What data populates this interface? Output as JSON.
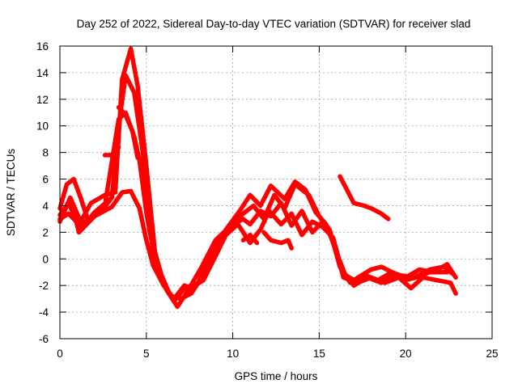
{
  "chart_data": {
    "type": "line",
    "title": "Day 252 of 2022, Sidereal Day-to-day VTEC variation (SDTVAR) for receiver slad",
    "xlabel": "GPS time / hours",
    "ylabel": "SDTVAR / TECUs",
    "xlim": [
      0,
      25
    ],
    "ylim": [
      -6,
      16
    ],
    "xticks": [
      0,
      5,
      10,
      15,
      20,
      25
    ],
    "yticks": [
      -6,
      -4,
      -2,
      0,
      2,
      4,
      6,
      8,
      10,
      12,
      14,
      16
    ],
    "grid": true,
    "marker": "plus",
    "color": "#ff0000",
    "series": [
      {
        "name": "series-1",
        "points": [
          [
            0,
            2.9
          ],
          [
            0.6,
            4.6
          ],
          [
            1.2,
            2.8
          ],
          [
            1.8,
            4.2
          ],
          [
            2.6,
            4.8
          ],
          [
            3.2,
            5.0
          ],
          [
            3.6,
            13.5
          ],
          [
            4.1,
            15.8
          ],
          [
            4.5,
            13.0
          ],
          [
            5.0,
            7.0
          ],
          [
            5.5,
            0.5
          ],
          [
            6.0,
            -1.8
          ],
          [
            6.6,
            -3.2
          ],
          [
            7.2,
            -2.2
          ],
          [
            8.0,
            -1.8
          ],
          [
            8.8,
            0.5
          ],
          [
            9.6,
            2.2
          ],
          [
            10.4,
            3.6
          ],
          [
            11.0,
            4.8
          ],
          [
            11.6,
            4.0
          ],
          [
            12.2,
            5.5
          ],
          [
            13.0,
            4.5
          ],
          [
            13.6,
            5.8
          ],
          [
            14.2,
            5.2
          ],
          [
            14.8,
            3.5
          ],
          [
            15.4,
            2.6
          ],
          [
            16.0,
            0.5
          ],
          [
            16.5,
            -1.2
          ],
          [
            17.0,
            -1.6
          ],
          [
            18.0,
            -0.8
          ],
          [
            18.6,
            -0.6
          ],
          [
            19.5,
            -1.2
          ],
          [
            20.5,
            -1.4
          ],
          [
            21.4,
            -0.8
          ],
          [
            22.2,
            -0.6
          ],
          [
            22.8,
            -1.2
          ]
        ]
      },
      {
        "name": "series-2",
        "points": [
          [
            0,
            3.3
          ],
          [
            0.5,
            4.2
          ],
          [
            1.2,
            2.2
          ],
          [
            2.0,
            3.5
          ],
          [
            3.0,
            4.6
          ],
          [
            3.5,
            11.0
          ],
          [
            3.8,
            13.8
          ],
          [
            4.3,
            12.5
          ],
          [
            4.8,
            8.0
          ],
          [
            5.2,
            2.0
          ],
          [
            5.8,
            -1.0
          ],
          [
            6.4,
            -2.8
          ],
          [
            7.0,
            -3.0
          ],
          [
            7.6,
            -2.6
          ],
          [
            8.4,
            -1.0
          ],
          [
            9.2,
            1.0
          ],
          [
            10.0,
            2.8
          ],
          [
            10.6,
            3.4
          ],
          [
            11.2,
            4.0
          ],
          [
            11.8,
            3.0
          ],
          [
            12.4,
            4.8
          ],
          [
            13.0,
            3.8
          ],
          [
            13.6,
            5.6
          ],
          [
            14.4,
            4.8
          ],
          [
            15.0,
            3.2
          ],
          [
            15.6,
            2.2
          ],
          [
            16.2,
            -0.6
          ],
          [
            16.8,
            -1.8
          ],
          [
            17.6,
            -1.2
          ],
          [
            18.4,
            -1.6
          ],
          [
            19.2,
            -1.0
          ],
          [
            20.0,
            -1.4
          ],
          [
            20.8,
            -0.8
          ],
          [
            21.6,
            -1.0
          ],
          [
            22.4,
            -0.4
          ],
          [
            22.9,
            -1.4
          ]
        ]
      },
      {
        "name": "series-3",
        "points": [
          [
            0,
            3.0
          ],
          [
            0.5,
            3.4
          ],
          [
            1.1,
            2.6
          ],
          [
            1.8,
            3.0
          ],
          [
            2.6,
            4.0
          ],
          [
            3.4,
            10.5
          ],
          [
            3.8,
            11.0
          ],
          [
            4.3,
            9.2
          ],
          [
            4.6,
            7.4
          ],
          [
            5.0,
            3.5
          ],
          [
            5.6,
            -0.8
          ],
          [
            6.2,
            -2.4
          ],
          [
            6.8,
            -3.6
          ],
          [
            7.4,
            -2.4
          ],
          [
            8.2,
            -0.6
          ],
          [
            9.0,
            1.4
          ],
          [
            9.8,
            2.4
          ],
          [
            10.6,
            3.0
          ],
          [
            11.0,
            2.6
          ],
          [
            11.6,
            3.6
          ],
          [
            12.2,
            3.2
          ],
          [
            12.8,
            4.2
          ],
          [
            13.4,
            2.5
          ],
          [
            14.0,
            3.6
          ],
          [
            14.6,
            2.0
          ],
          [
            15.2,
            2.8
          ],
          [
            15.8,
            1.5
          ],
          [
            16.4,
            -1.4
          ],
          [
            17.2,
            -1.8
          ],
          [
            18.0,
            -1.4
          ],
          [
            18.8,
            -1.8
          ],
          [
            19.6,
            -1.4
          ],
          [
            20.3,
            -2.2
          ],
          [
            21.0,
            -1.4
          ],
          [
            21.8,
            -1.6
          ],
          [
            22.6,
            -1.8
          ],
          [
            22.9,
            -2.6
          ]
        ]
      },
      {
        "name": "series-4",
        "points": [
          [
            0,
            2.8
          ],
          [
            0.6,
            4.6
          ],
          [
            1.1,
            2.0
          ],
          [
            2.0,
            3.2
          ],
          [
            3.0,
            3.9
          ],
          [
            3.6,
            5.0
          ],
          [
            4.1,
            5.1
          ],
          [
            4.6,
            3.8
          ],
          [
            5.0,
            1.4
          ],
          [
            5.4,
            -0.5
          ],
          [
            6.0,
            -2.0
          ],
          [
            6.6,
            -3.0
          ],
          [
            7.2,
            -2.0
          ],
          [
            7.6,
            -2.2
          ],
          [
            8.3,
            -1.6
          ],
          [
            9.0,
            0.2
          ],
          [
            9.6,
            1.8
          ],
          [
            10.3,
            2.6
          ],
          [
            11.0,
            1.2
          ],
          [
            11.6,
            2.2
          ],
          [
            12.1,
            3.6
          ],
          [
            12.8,
            2.6
          ],
          [
            13.4,
            3.4
          ],
          [
            14.0,
            1.8
          ],
          [
            14.6,
            2.8
          ],
          [
            15.2,
            2.4
          ],
          [
            15.8,
            1.6
          ],
          [
            16.3,
            -0.8
          ],
          [
            17.0,
            -2.0
          ],
          [
            17.8,
            -1.4
          ],
          [
            18.6,
            -1.8
          ],
          [
            19.4,
            -1.2
          ],
          [
            20.0,
            -1.6
          ],
          [
            20.6,
            -1.4
          ],
          [
            21.4,
            -1.0
          ],
          [
            22.4,
            -1.0
          ]
        ]
      },
      {
        "name": "series-5",
        "points": [
          [
            0,
            3.8
          ],
          [
            0.4,
            5.6
          ],
          [
            0.8,
            6.0
          ],
          [
            1.2,
            4.6
          ],
          [
            1.6,
            3.0
          ],
          [
            2.4,
            3.6
          ],
          [
            3.0,
            4.6
          ]
        ]
      },
      {
        "name": "series-6",
        "points": [
          [
            2.6,
            7.8
          ],
          [
            3.0,
            7.8
          ],
          [
            3.4,
            8.4
          ]
        ]
      },
      {
        "name": "series-7",
        "points": [
          [
            3.4,
            11.4
          ],
          [
            3.8,
            10.8
          ],
          [
            4.2,
            9.6
          ],
          [
            4.5,
            7.6
          ]
        ]
      },
      {
        "name": "series-8",
        "points": [
          [
            10.6,
            1.4
          ],
          [
            11.0,
            1.8
          ],
          [
            11.4,
            1.2
          ]
        ]
      },
      {
        "name": "series-9",
        "points": [
          [
            11.8,
            2.0
          ],
          [
            12.2,
            1.4
          ],
          [
            12.8,
            1.2
          ],
          [
            13.2,
            1.4
          ],
          [
            13.4,
            0.8
          ]
        ]
      },
      {
        "name": "series-10",
        "points": [
          [
            16.2,
            6.2
          ],
          [
            16.6,
            5.2
          ],
          [
            17.0,
            4.2
          ],
          [
            17.6,
            4.0
          ],
          [
            18.0,
            3.8
          ],
          [
            18.6,
            3.4
          ],
          [
            19.0,
            3.0
          ]
        ]
      }
    ]
  }
}
